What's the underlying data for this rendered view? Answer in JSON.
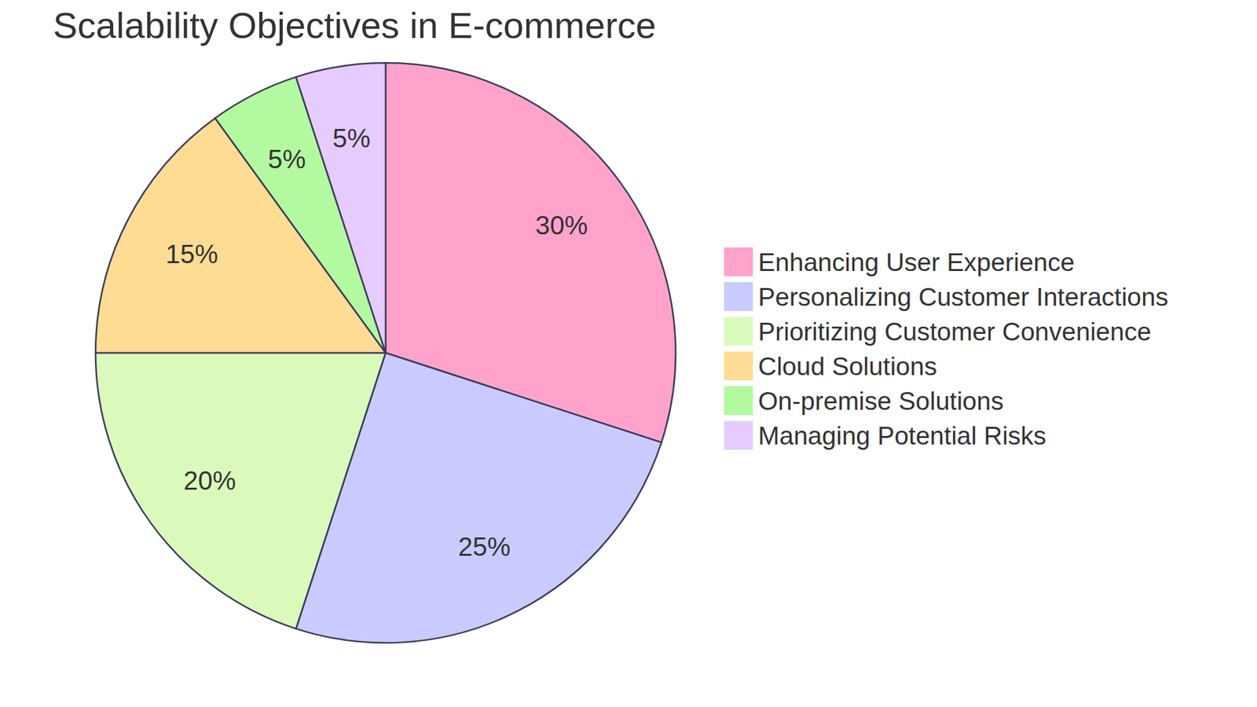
{
  "chart_data": {
    "type": "pie",
    "title": "Scalability Objectives in E-commerce",
    "categories": [
      "Enhancing User Experience",
      "Personalizing Customer Interactions",
      "Prioritizing Customer Convenience",
      "Cloud Solutions",
      "On-premise Solutions",
      "Managing Potential Risks"
    ],
    "values": [
      30,
      25,
      20,
      15,
      5,
      5
    ],
    "value_labels": [
      "30%",
      "25%",
      "20%",
      "15%",
      "5%",
      "5%"
    ],
    "colors": [
      "#ffa3cd",
      "#c9cbff",
      "#dafabc",
      "#fedc93",
      "#b3f9a0",
      "#e6cbff"
    ],
    "data_labels": true,
    "legend": "right"
  }
}
